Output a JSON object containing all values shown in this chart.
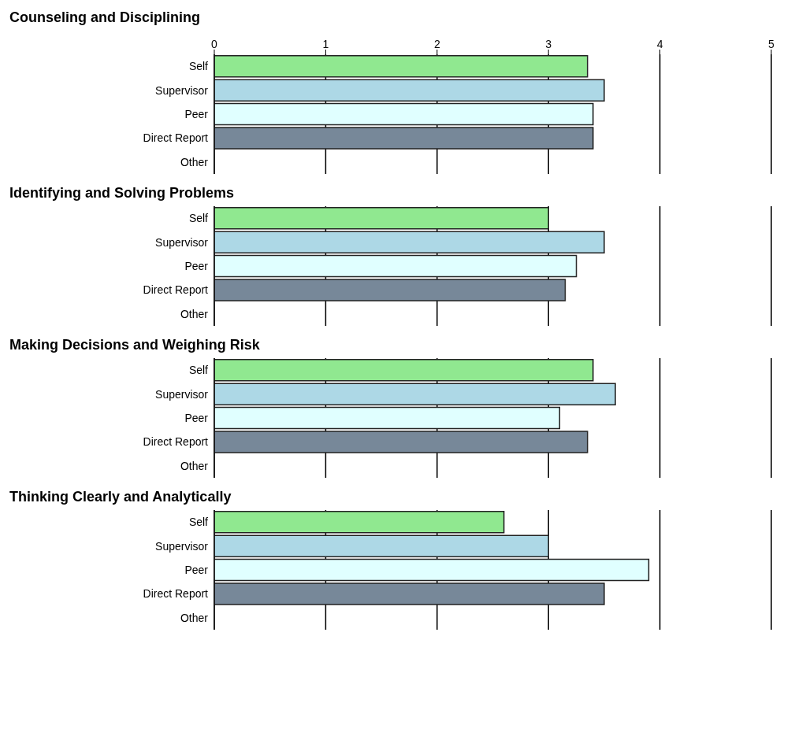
{
  "chart_data": [
    {
      "type": "bar",
      "orientation": "horizontal",
      "title": "Counseling and Disciplining",
      "categories": [
        "Self",
        "Supervisor",
        "Peer",
        "Direct Report",
        "Other"
      ],
      "values": [
        3.35,
        3.5,
        3.4,
        3.4,
        null
      ],
      "colors": [
        "#90e890",
        "#add8e6",
        "#e0ffff",
        "#778899",
        "#cccccc"
      ],
      "xlim": [
        0,
        5
      ],
      "xticks": [
        0,
        1,
        2,
        3,
        4,
        5
      ],
      "grid": "x"
    },
    {
      "type": "bar",
      "orientation": "horizontal",
      "title": "Identifying and Solving Problems",
      "categories": [
        "Self",
        "Supervisor",
        "Peer",
        "Direct Report",
        "Other"
      ],
      "values": [
        3.0,
        3.5,
        3.25,
        3.15,
        null
      ],
      "colors": [
        "#90e890",
        "#add8e6",
        "#e0ffff",
        "#778899",
        "#cccccc"
      ],
      "xlim": [
        0,
        5
      ],
      "xticks": [
        0,
        1,
        2,
        3,
        4,
        5
      ],
      "grid": "x",
      "tick_labels": "y"
    },
    {
      "type": "bar",
      "orientation": "horizontal",
      "title": "Making Decisions and Weighing Risk",
      "categories": [
        "Self",
        "Supervisor",
        "Peer",
        "Direct Report",
        "Other"
      ],
      "values": [
        3.4,
        3.6,
        3.1,
        3.35,
        null
      ],
      "colors": [
        "#90e890",
        "#add8e6",
        "#e0ffff",
        "#778899",
        "#cccccc"
      ],
      "xlim": [
        0,
        5
      ],
      "xticks": [
        0,
        1,
        2,
        3,
        4,
        5
      ],
      "grid": "x",
      "tick_labels": "y"
    },
    {
      "type": "bar",
      "orientation": "horizontal",
      "title": "Thinking Clearly and Analytically",
      "categories": [
        "Self",
        "Supervisor",
        "Peer",
        "Direct Report",
        "Other"
      ],
      "values": [
        2.6,
        3.0,
        3.9,
        3.5,
        null
      ],
      "colors": [
        "#90e890",
        "#add8e6",
        "#e0ffff",
        "#778899",
        "#cccccc"
      ],
      "xlim": [
        0,
        5
      ],
      "xticks": [
        0,
        1,
        2,
        3,
        4,
        5
      ],
      "grid": "x",
      "tick_labels": "y"
    }
  ]
}
